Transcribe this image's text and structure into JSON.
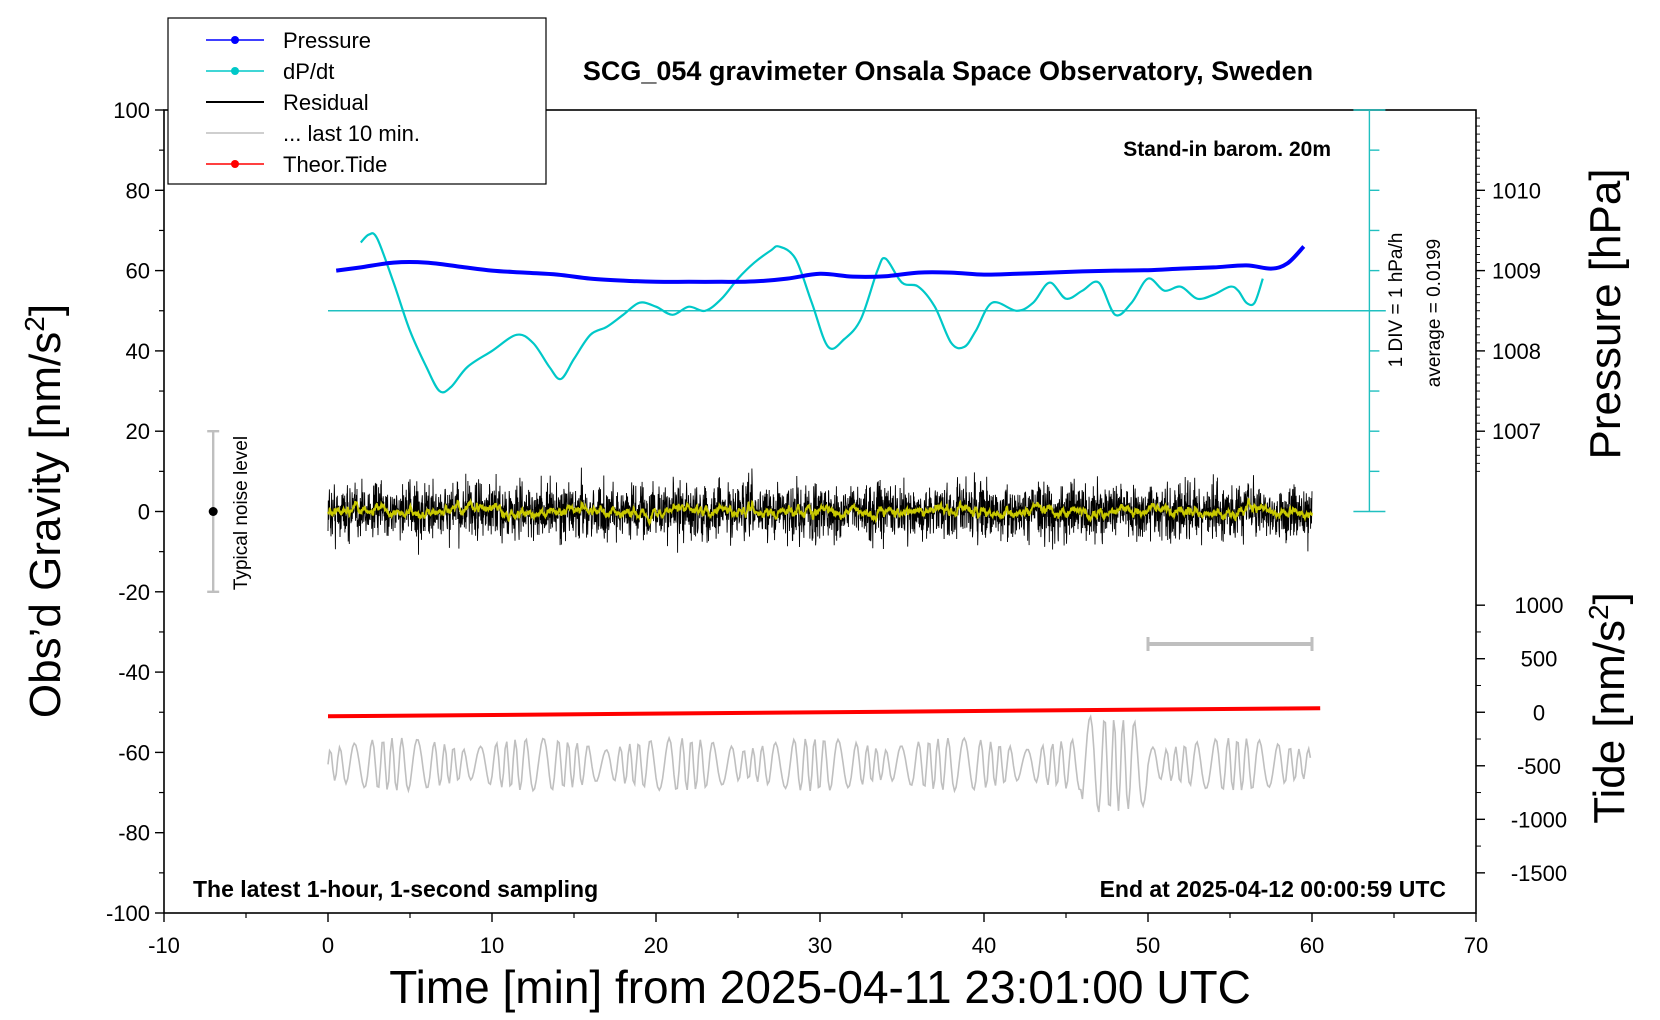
{
  "chart_data": {
    "type": "line",
    "title": "SCG_054 gravimeter Onsala Space Observatory, Sweden",
    "xlabel": "Time [min] from 2025-04-11 23:01:00 UTC",
    "ylabel_left": "Obs’d Gravity [nm/s",
    "ylabel_left_sup": "2",
    "ylabel_left_end": "]",
    "ylabel_right_pressure": "Pressure [hPa]",
    "ylabel_right_tide": "Tide [nm/s",
    "ylabel_right_tide_sup": "2",
    "ylabel_right_tide_end": "]",
    "xlim": [
      -10,
      70
    ],
    "ylim": [
      -100,
      100
    ],
    "x_ticks": [
      -10,
      0,
      10,
      20,
      30,
      40,
      50,
      60,
      70
    ],
    "y_ticks": [
      -100,
      -80,
      -60,
      -40,
      -20,
      0,
      20,
      40,
      60,
      80,
      100
    ],
    "pressure_axis": {
      "ticks": [
        1007,
        1008,
        1009,
        1010
      ],
      "hpa_per_nms2": 0.05,
      "ref_value": 1009,
      "ref_gravity": 60
    },
    "tide_axis": {
      "ticks": [
        1000,
        500,
        0,
        -500,
        -1000,
        -1500
      ],
      "nms2_per_gravity_unit": 37.5,
      "ref_gravity": -50
    },
    "legend": [
      {
        "label": "Pressure",
        "color": "#0000ff",
        "marker": true
      },
      {
        "label": "dP/dt",
        "color": "#00c8c8",
        "marker": true
      },
      {
        "label": "Residual",
        "color": "#000000",
        "marker": false
      },
      {
        "label": "... last 10 min.",
        "color": "#bfbfbf",
        "marker": false
      },
      {
        "label": "Theor.Tide",
        "color": "#ff0000",
        "marker": true
      }
    ],
    "annotations": {
      "barometer": "Stand-in barom. 20m",
      "div_label": "1 DIV = 1 hPa/h",
      "average_label": "average = 0.0199",
      "noise_label": "Typical noise level",
      "bottom_left": "The latest 1-hour, 1-second sampling",
      "bottom_right": "End at 2025-04-12 00:00:59 UTC"
    },
    "noise_bar": {
      "x": -7,
      "y_center": 0,
      "y_low": -20,
      "y_high": 20
    },
    "last10_bar": {
      "x_start": 50,
      "x_end": 60,
      "y": -33
    },
    "dpdt_reference": {
      "y_baseline": 50,
      "x_start": 0,
      "x_end": 64.5,
      "scale_x": 63.5,
      "scale_y_top": 100,
      "scale_y_bottom": 0,
      "tick_step": 10
    },
    "series": [
      {
        "name": "Pressure",
        "color": "#0000ff",
        "x": [
          0.5,
          2,
          4,
          6,
          8,
          10,
          12,
          14,
          16,
          18,
          20,
          22,
          24,
          26,
          28,
          30,
          32,
          34,
          36,
          38,
          40,
          42,
          44,
          46,
          48,
          50,
          52,
          54,
          56,
          57.5,
          58.5,
          59.5
        ],
        "y": [
          60,
          60.8,
          62,
          62,
          61,
          60,
          59.5,
          59,
          58,
          57.5,
          57.2,
          57.2,
          57.2,
          57.3,
          58,
          59.2,
          58.5,
          58.6,
          59.5,
          59.5,
          59,
          59.2,
          59.5,
          59.8,
          60,
          60.1,
          60.5,
          60.8,
          61.3,
          60.5,
          61.8,
          66
        ]
      },
      {
        "name": "dP/dt",
        "color": "#00c8c8",
        "x": [
          2,
          2.5,
          3,
          4,
          5,
          6,
          6.8,
          7.5,
          8.5,
          10,
          11.5,
          12.5,
          13.5,
          14.2,
          15,
          16,
          17,
          18,
          19,
          20,
          21,
          22,
          23,
          24,
          25,
          26,
          27,
          27.5,
          28.5,
          29.5,
          30.5,
          31.5,
          32.5,
          33.5,
          34,
          35,
          36,
          37,
          38,
          38.8,
          39.5,
          40.5,
          42,
          43,
          44,
          45,
          46,
          47,
          48,
          49,
          50,
          51,
          52,
          53,
          54,
          55,
          55.5,
          56,
          56.5,
          57
        ],
        "y": [
          67,
          69,
          68,
          57,
          45,
          36,
          30,
          31,
          36,
          40,
          44,
          42,
          36,
          33,
          38,
          44,
          46,
          49,
          52,
          51,
          49,
          51,
          50,
          53,
          58,
          62,
          65,
          66,
          63,
          52,
          41,
          43,
          48,
          60,
          63,
          57,
          56,
          51,
          42,
          41,
          45,
          52,
          50,
          52,
          57,
          53,
          55,
          57,
          49,
          52,
          58,
          55,
          56,
          53,
          54,
          56,
          55,
          52,
          52,
          58
        ]
      },
      {
        "name": "Residual",
        "color": "#000000",
        "x_range": [
          0,
          60
        ],
        "amplitude": 8,
        "sampling_s": 1
      },
      {
        "name": "Residual (smoothed)",
        "color": "#c8c800",
        "x_range": [
          0,
          60
        ]
      },
      {
        "name": "Theor.Tide",
        "color": "#ff0000",
        "x": [
          0,
          60.5
        ],
        "y": [
          -51,
          -49
        ]
      },
      {
        "name": "... last 10 min.",
        "color": "#bfbfbf",
        "x_range": [
          0,
          60
        ],
        "center": -63,
        "amplitude": 6
      }
    ]
  }
}
